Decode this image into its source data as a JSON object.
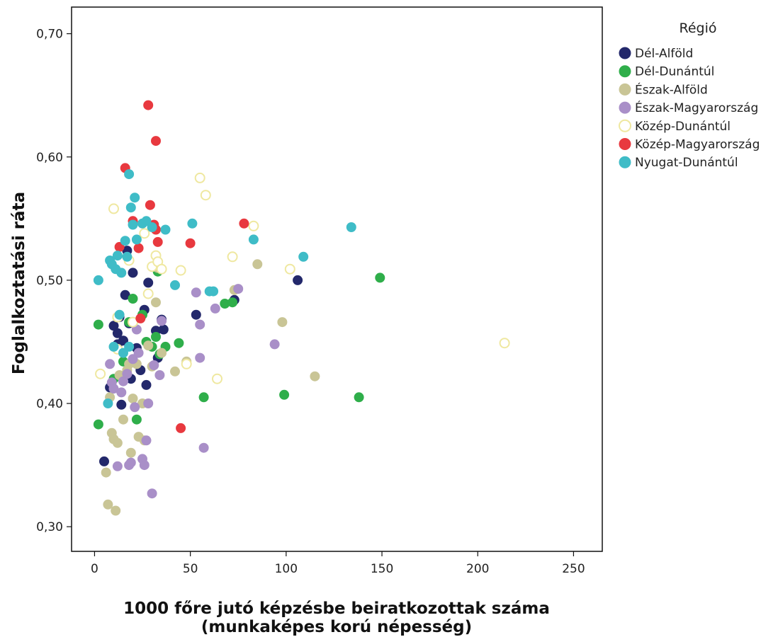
{
  "chart_data": {
    "type": "scatter",
    "title": "",
    "xlabel_line1": "1000 főre jutó képzésbe beiratkozottak száma",
    "xlabel_line2": "(munkaképes korú népesség)",
    "ylabel": "Foglalkoztatási ráta",
    "xlim": [
      -12,
      265
    ],
    "ylim": [
      0.28,
      0.7216
    ],
    "x_ticks": [
      0,
      50,
      100,
      150,
      200,
      250
    ],
    "x_tick_labels": [
      "0",
      "50",
      "100",
      "150",
      "200",
      "250"
    ],
    "y_ticks": [
      0.3,
      0.4,
      0.5,
      0.6,
      0.7
    ],
    "y_tick_labels": [
      "0,30",
      "0,40",
      "0,50",
      "0,60",
      "0,70"
    ],
    "grid": false,
    "legend": {
      "title": "Régió",
      "placement": "right"
    },
    "series": [
      {
        "name": "Dél-Alföld",
        "color": "#23286b",
        "hollow": false,
        "points": [
          [
            5,
            0.353
          ],
          [
            10,
            0.463
          ],
          [
            12,
            0.457
          ],
          [
            13,
            0.47
          ],
          [
            14,
            0.399
          ],
          [
            15,
            0.451
          ],
          [
            16,
            0.488
          ],
          [
            17,
            0.524
          ],
          [
            18,
            0.465
          ],
          [
            19,
            0.42
          ],
          [
            20,
            0.506
          ],
          [
            22,
            0.445
          ],
          [
            24,
            0.427
          ],
          [
            26,
            0.476
          ],
          [
            27,
            0.415
          ],
          [
            28,
            0.498
          ],
          [
            32,
            0.459
          ],
          [
            33,
            0.437
          ],
          [
            35,
            0.468
          ],
          [
            36,
            0.46
          ],
          [
            53,
            0.472
          ],
          [
            73,
            0.484
          ],
          [
            106,
            0.5
          ],
          [
            8,
            0.413
          ],
          [
            12,
            0.448
          ]
        ]
      },
      {
        "name": "Dél-Dunántúl",
        "color": "#2fae4a",
        "hollow": false,
        "points": [
          [
            2,
            0.464
          ],
          [
            2,
            0.383
          ],
          [
            15,
            0.434
          ],
          [
            18,
            0.466
          ],
          [
            20,
            0.485
          ],
          [
            22,
            0.387
          ],
          [
            25,
            0.472
          ],
          [
            27,
            0.45
          ],
          [
            30,
            0.446
          ],
          [
            32,
            0.454
          ],
          [
            33,
            0.507
          ],
          [
            34,
            0.44
          ],
          [
            37,
            0.446
          ],
          [
            44,
            0.449
          ],
          [
            57,
            0.405
          ],
          [
            68,
            0.481
          ],
          [
            72,
            0.482
          ],
          [
            99,
            0.407
          ],
          [
            138,
            0.405
          ],
          [
            149,
            0.502
          ],
          [
            10,
            0.42
          ]
        ]
      },
      {
        "name": "Észak-Alföld",
        "color": "#c9c596",
        "hollow": false,
        "points": [
          [
            6,
            0.344
          ],
          [
            7,
            0.318
          ],
          [
            8,
            0.405
          ],
          [
            9,
            0.376
          ],
          [
            10,
            0.371
          ],
          [
            11,
            0.313
          ],
          [
            12,
            0.368
          ],
          [
            13,
            0.423
          ],
          [
            15,
            0.387
          ],
          [
            17,
            0.427
          ],
          [
            18,
            0.432
          ],
          [
            19,
            0.36
          ],
          [
            20,
            0.404
          ],
          [
            22,
            0.432
          ],
          [
            23,
            0.373
          ],
          [
            25,
            0.4
          ],
          [
            26,
            0.37
          ],
          [
            28,
            0.447
          ],
          [
            30,
            0.43
          ],
          [
            32,
            0.482
          ],
          [
            33,
            0.51
          ],
          [
            35,
            0.441
          ],
          [
            42,
            0.426
          ],
          [
            48,
            0.434
          ],
          [
            73,
            0.492
          ],
          [
            85,
            0.513
          ],
          [
            98,
            0.466
          ],
          [
            115,
            0.422
          ]
        ]
      },
      {
        "name": "Észak-Magyarország",
        "color": "#a98fc8",
        "hollow": false,
        "points": [
          [
            8,
            0.432
          ],
          [
            9,
            0.417
          ],
          [
            10,
            0.412
          ],
          [
            12,
            0.349
          ],
          [
            14,
            0.409
          ],
          [
            15,
            0.418
          ],
          [
            17,
            0.424
          ],
          [
            18,
            0.35
          ],
          [
            19,
            0.352
          ],
          [
            20,
            0.436
          ],
          [
            21,
            0.397
          ],
          [
            22,
            0.46
          ],
          [
            23,
            0.441
          ],
          [
            25,
            0.355
          ],
          [
            26,
            0.35
          ],
          [
            27,
            0.37
          ],
          [
            28,
            0.4
          ],
          [
            30,
            0.327
          ],
          [
            31,
            0.431
          ],
          [
            34,
            0.423
          ],
          [
            35,
            0.467
          ],
          [
            53,
            0.49
          ],
          [
            55,
            0.464
          ],
          [
            55,
            0.437
          ],
          [
            57,
            0.364
          ],
          [
            63,
            0.477
          ],
          [
            75,
            0.493
          ],
          [
            94,
            0.448
          ]
        ]
      },
      {
        "name": "Közép-Dunántúl",
        "color": "#fdf9c8",
        "stroke": "#efe8a0",
        "hollow": true,
        "points": [
          [
            3,
            0.424
          ],
          [
            10,
            0.558
          ],
          [
            12,
            0.47
          ],
          [
            18,
            0.516
          ],
          [
            20,
            0.466
          ],
          [
            26,
            0.538
          ],
          [
            28,
            0.489
          ],
          [
            30,
            0.511
          ],
          [
            32,
            0.52
          ],
          [
            33,
            0.515
          ],
          [
            35,
            0.509
          ],
          [
            45,
            0.508
          ],
          [
            48,
            0.432
          ],
          [
            55,
            0.583
          ],
          [
            58,
            0.569
          ],
          [
            64,
            0.42
          ],
          [
            72,
            0.519
          ],
          [
            83,
            0.544
          ],
          [
            102,
            0.509
          ],
          [
            214,
            0.449
          ],
          [
            12,
            0.444
          ]
        ]
      },
      {
        "name": "Közép-Magyarország",
        "color": "#e8393f",
        "hollow": false,
        "points": [
          [
            13,
            0.527
          ],
          [
            16,
            0.591
          ],
          [
            20,
            0.548
          ],
          [
            23,
            0.526
          ],
          [
            24,
            0.469
          ],
          [
            28,
            0.642
          ],
          [
            29,
            0.561
          ],
          [
            31,
            0.545
          ],
          [
            32,
            0.613
          ],
          [
            32,
            0.541
          ],
          [
            33,
            0.531
          ],
          [
            45,
            0.38
          ],
          [
            50,
            0.53
          ],
          [
            78,
            0.546
          ]
        ]
      },
      {
        "name": "Nyugat-Dunántúl",
        "color": "#3fbcc7",
        "hollow": false,
        "points": [
          [
            2,
            0.5
          ],
          [
            7,
            0.4
          ],
          [
            8,
            0.516
          ],
          [
            9,
            0.513
          ],
          [
            10,
            0.446
          ],
          [
            11,
            0.509
          ],
          [
            12,
            0.52
          ],
          [
            13,
            0.472
          ],
          [
            14,
            0.506
          ],
          [
            15,
            0.441
          ],
          [
            16,
            0.532
          ],
          [
            17,
            0.519
          ],
          [
            18,
            0.586
          ],
          [
            19,
            0.559
          ],
          [
            20,
            0.545
          ],
          [
            21,
            0.567
          ],
          [
            22,
            0.533
          ],
          [
            25,
            0.546
          ],
          [
            27,
            0.548
          ],
          [
            30,
            0.543
          ],
          [
            37,
            0.541
          ],
          [
            42,
            0.496
          ],
          [
            51,
            0.546
          ],
          [
            60,
            0.491
          ],
          [
            62,
            0.491
          ],
          [
            83,
            0.533
          ],
          [
            109,
            0.519
          ],
          [
            134,
            0.543
          ],
          [
            18,
            0.446
          ]
        ]
      }
    ]
  }
}
